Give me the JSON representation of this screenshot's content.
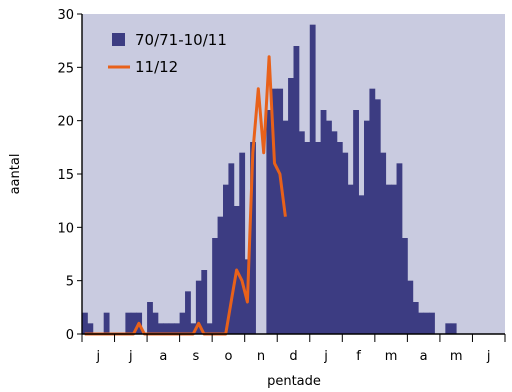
{
  "chart_data": {
    "type": "bar",
    "xlabel": "pentade",
    "ylabel": "aantal",
    "ylim": [
      0,
      30
    ],
    "yticks": [
      0,
      5,
      10,
      15,
      20,
      25,
      30
    ],
    "month_labels": [
      "j",
      "j",
      "a",
      "s",
      "o",
      "n",
      "d",
      "j",
      "f",
      "m",
      "a",
      "m",
      "j"
    ],
    "pentades_per_month": 6,
    "grid": false,
    "legend_position": "top-left",
    "colors": {
      "bars": "#3c3c82",
      "line": "#e8611a",
      "background": "#c9cbe0"
    },
    "series": [
      {
        "name": "70/71-10/11",
        "type": "bar",
        "values": [
          2,
          1,
          0,
          0,
          2,
          0,
          0,
          0,
          2,
          2,
          2,
          0,
          3,
          2,
          1,
          1,
          1,
          1,
          2,
          4,
          1,
          5,
          6,
          1,
          9,
          11,
          14,
          16,
          12,
          17,
          7,
          18,
          0,
          0,
          21,
          23,
          23,
          20,
          24,
          27,
          19,
          18,
          29,
          18,
          21,
          20,
          19,
          18,
          17,
          14,
          21,
          13,
          20,
          23,
          22,
          17,
          14,
          14,
          16,
          9,
          5,
          3,
          2,
          2,
          2,
          0,
          0,
          1,
          1
        ],
        "start_pentade": 0
      },
      {
        "name": "11/12",
        "type": "line",
        "values": [
          0,
          0,
          0,
          0,
          0,
          0,
          0,
          0,
          0,
          0,
          1,
          0,
          0,
          0,
          0,
          0,
          0,
          0,
          0,
          0,
          0,
          1,
          0,
          0,
          0,
          0,
          0,
          3,
          6,
          5,
          3,
          17,
          23,
          17,
          26,
          16,
          15,
          11
        ],
        "start_pentade": 0
      }
    ]
  }
}
